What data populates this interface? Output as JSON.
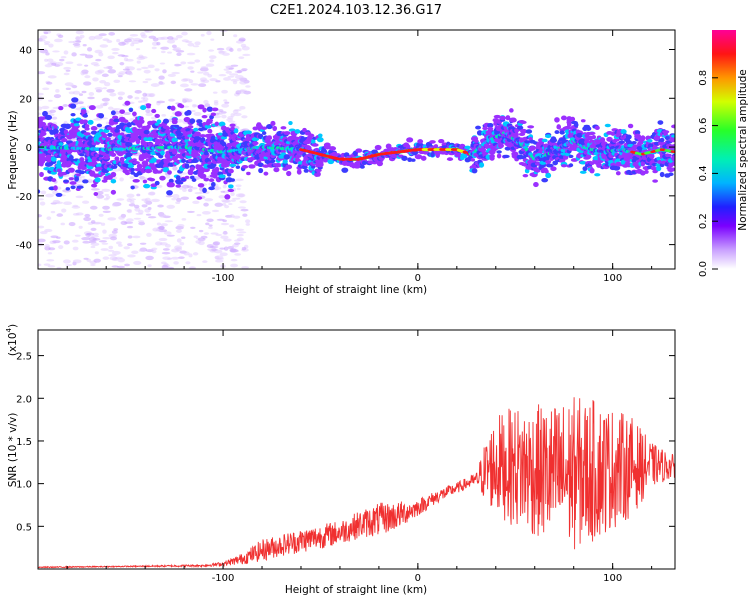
{
  "page_title": "C2E1.2024.103.12.36.G17",
  "colors": {
    "snr_line": "#f03030",
    "ridge_hot": "#ff1a1a",
    "colormap": [
      "#ffffff",
      "#9b30ff",
      "#3c3cff",
      "#00c8ff",
      "#00f0a0",
      "#3cff3c",
      "#e6ff00",
      "#ff9a00",
      "#ff1a1a",
      "#ff00c8"
    ]
  },
  "chart_data": [
    {
      "type": "heatmap",
      "title": "C2E1.2024.103.12.36.G17",
      "xlabel": "Height of straight line (km)",
      "ylabel": "Frequency (Hz)",
      "xlim": [
        -195,
        132
      ],
      "ylim": [
        -50,
        48
      ],
      "x_ticks": [
        -100,
        0,
        100
      ],
      "y_ticks": [
        -40,
        -20,
        0,
        20,
        40
      ],
      "grid": false,
      "colorbar": {
        "label": "Normalized spectral amplitude",
        "range": [
          0,
          1
        ],
        "ticks": [
          0.0,
          0.2,
          0.4,
          0.6,
          0.8
        ]
      },
      "ridge": {
        "x": [
          -195,
          -160,
          -120,
          -100,
          -80,
          -60,
          -50,
          -40,
          -30,
          -20,
          -10,
          0,
          10,
          20,
          28,
          35,
          45,
          55,
          60,
          70,
          80,
          85,
          95,
          105,
          115,
          125,
          132
        ],
        "y": [
          0,
          -1,
          0,
          -2,
          0,
          -1,
          -3,
          -5,
          -5,
          -3,
          -2,
          -1,
          -1,
          -1,
          -3,
          2,
          6,
          0,
          -5,
          -2,
          3,
          0,
          -2,
          -1,
          -3,
          -1,
          -2
        ]
      },
      "noise_cloud_x_range": [
        -195,
        -95
      ],
      "noise_cloud_y_range": [
        -50,
        48
      ]
    },
    {
      "type": "line",
      "xlabel": "Height of straight line (km)",
      "ylabel": "SNR (10 * v/v)",
      "ylabel_scale": "(x10^4)",
      "scale_label": "(x10",
      "scale_exponent": "4",
      "scale_suffix": ")",
      "xlim": [
        -195,
        132
      ],
      "ylim": [
        0,
        2.8
      ],
      "x_ticks": [
        -100,
        0,
        100
      ],
      "y_ticks": [
        0.5,
        1.0,
        1.5,
        2.0,
        2.5
      ],
      "grid": false,
      "series": [
        {
          "values_description_envelope": "noisy trace",
          "x": [
            -195,
            -150,
            -110,
            -100,
            -90,
            -80,
            -70,
            -60,
            -50,
            -40,
            -30,
            -20,
            -10,
            0,
            10,
            20,
            30,
            35,
            40,
            50,
            60,
            70,
            80,
            90,
            100,
            110,
            120,
            132
          ],
          "mean": [
            0.02,
            0.03,
            0.04,
            0.06,
            0.12,
            0.22,
            0.28,
            0.33,
            0.38,
            0.43,
            0.52,
            0.58,
            0.63,
            0.72,
            0.85,
            0.95,
            1.05,
            1.15,
            1.22,
            1.2,
            1.15,
            1.1,
            1.12,
            1.15,
            1.18,
            1.2,
            1.22,
            1.2
          ],
          "amp": [
            0.01,
            0.01,
            0.02,
            0.04,
            0.1,
            0.2,
            0.2,
            0.22,
            0.22,
            0.22,
            0.25,
            0.3,
            0.25,
            0.15,
            0.12,
            0.1,
            0.12,
            0.6,
            0.9,
            1.1,
            1.2,
            1.3,
            1.4,
            1.3,
            1.1,
            0.9,
            0.4,
            0.2
          ]
        }
      ]
    }
  ]
}
